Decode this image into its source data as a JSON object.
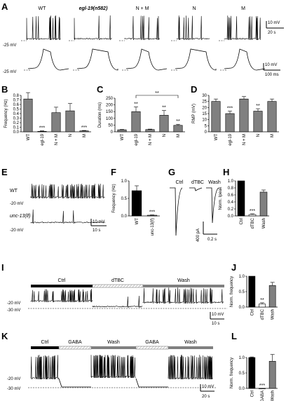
{
  "panels": {
    "A": {
      "letter": "A",
      "conditions": [
        "WT",
        "egl-19(n582)",
        "N + M",
        "N",
        "M"
      ],
      "voltage_label": "-25 mV",
      "scalebar_top": {
        "v": "10 mV",
        "t": "20 s"
      },
      "scalebar_bottom": {
        "v": "10 mV",
        "t": "100 ms"
      }
    },
    "B": {
      "letter": "B"
    },
    "C": {
      "letter": "C"
    },
    "D": {
      "letter": "D"
    },
    "E": {
      "letter": "E",
      "trace_labels": [
        "WT",
        "unc-13(lf)"
      ],
      "voltage_label": "-20 mV",
      "scalebar": {
        "v": "10 mV",
        "t": "10 s"
      }
    },
    "F": {
      "letter": "F"
    },
    "G": {
      "letter": "G",
      "conditions": [
        "Ctrl",
        "dTBC",
        "Wash"
      ],
      "scalebar": {
        "i": "400 pA",
        "t": "0.2 s"
      }
    },
    "H": {
      "letter": "H"
    },
    "I": {
      "letter": "I",
      "bars": [
        "Ctrl",
        "dTBC",
        "Wash"
      ],
      "voltages": [
        "-20 mV",
        "-30 mV"
      ],
      "scalebar": {
        "v": "10 mV",
        "t": "10 s"
      }
    },
    "J": {
      "letter": "J"
    },
    "K": {
      "letter": "K",
      "bars": [
        "Ctrl",
        "GABA",
        "Wash",
        "GABA",
        "Wash"
      ],
      "voltages": [
        "-20 mV",
        "-30 mV"
      ],
      "scalebar": {
        "v": "10 mV",
        "t": "20 s"
      }
    },
    "L": {
      "letter": "L"
    }
  },
  "chart_data": [
    {
      "id": "B",
      "type": "bar",
      "categories": [
        "WT",
        "egl-19",
        "N + M",
        "N",
        "M"
      ],
      "values": [
        0.72,
        0.01,
        0.42,
        0.46,
        0.02
      ],
      "errors": [
        0.14,
        0.01,
        0.12,
        0.16,
        0.01
      ],
      "colors": [
        "#808080",
        "#808080",
        "#808080",
        "#808080",
        "#808080"
      ],
      "ylabel": "Frequency (Hz)",
      "ylim": [
        0,
        0.8
      ],
      "yticks": [
        "0.0",
        "0.1",
        "0.2",
        "0.3",
        "0.4",
        "0.5",
        "0.6",
        "0.7",
        "0.8"
      ],
      "significance": [
        "",
        "***",
        "",
        "",
        "***"
      ]
    },
    {
      "id": "C",
      "type": "bar",
      "categories": [
        "WT",
        "egl-19",
        "N + M",
        "N",
        "M"
      ],
      "values": [
        15,
        150,
        17,
        123,
        48
      ],
      "errors": [
        3,
        35,
        3,
        35,
        8
      ],
      "colors": [
        "#808080",
        "#808080",
        "#808080",
        "#808080",
        "#808080"
      ],
      "ylabel": "Duration (ms)",
      "ylim": [
        0,
        250
      ],
      "yticks": [
        "0",
        "50",
        "100",
        "150",
        "200",
        "250"
      ],
      "significance": [
        "",
        "**",
        "",
        "**",
        "**"
      ],
      "bracket": {
        "from": 1,
        "to": 4,
        "label": "**"
      }
    },
    {
      "id": "D",
      "type": "bar",
      "categories": [
        "WT",
        "egl-19",
        "N + M",
        "N",
        "M"
      ],
      "values": [
        25,
        15,
        27,
        17,
        25
      ],
      "errors": [
        2,
        2,
        2,
        2,
        2
      ],
      "colors": [
        "#808080",
        "#808080",
        "#808080",
        "#808080",
        "#808080"
      ],
      "ylabel": "RMP (mV)",
      "ylim": [
        0,
        30
      ],
      "yticks": [
        "0",
        "5",
        "10",
        "15",
        "20",
        "25",
        "30"
      ],
      "significance": [
        "",
        "***",
        "",
        "**",
        ""
      ]
    },
    {
      "id": "F",
      "type": "bar",
      "categories": [
        "WT",
        "unc-13(lf)"
      ],
      "values": [
        0.72,
        0.02
      ],
      "errors": [
        0.14,
        0.01
      ],
      "colors": [
        "#000000",
        "#808080"
      ],
      "ylabel": "Frequency (Hz)",
      "ylim": [
        0,
        1.0
      ],
      "yticks": [
        "0.0",
        "0.5",
        "1.0"
      ],
      "significance": [
        "",
        "***"
      ]
    },
    {
      "id": "H",
      "type": "bar",
      "categories": [
        "Ctrl",
        "dTBC",
        "Wash"
      ],
      "values": [
        1.0,
        0.04,
        0.68
      ],
      "errors": [
        0,
        0.02,
        0.06
      ],
      "colors": [
        "#000000",
        "#ffffff",
        "#808080"
      ],
      "ylabel": "Norm. Ipeak",
      "ylim": [
        0,
        1.0
      ],
      "yticks": [
        "0.0",
        "0.2",
        "0.4",
        "0.6",
        "0.8",
        "1.0"
      ],
      "significance": [
        "",
        "***",
        ""
      ]
    },
    {
      "id": "J",
      "type": "bar",
      "categories": [
        "Ctrl",
        "dTBC",
        "Wash"
      ],
      "values": [
        1.0,
        0.1,
        0.7
      ],
      "errors": [
        0,
        0.04,
        0.1
      ],
      "colors": [
        "#000000",
        "#ffffff",
        "#808080"
      ],
      "ylabel": "Norm. frequency",
      "ylim": [
        0,
        1.0
      ],
      "yticks": [
        "0.0",
        "0.5",
        "1.0"
      ],
      "significance": [
        "",
        "**",
        ""
      ]
    },
    {
      "id": "L",
      "type": "bar",
      "categories": [
        "Ctrl",
        "GABA",
        "Wash"
      ],
      "values": [
        1.0,
        0.0,
        0.88
      ],
      "errors": [
        0.02,
        0,
        0.22
      ],
      "colors": [
        "#000000",
        "#ffffff",
        "#808080"
      ],
      "ylabel": "Norm. frequency",
      "ylim": [
        0,
        1.0
      ],
      "yticks": [
        "0.0",
        "0.5",
        "1.0"
      ],
      "significance": [
        "",
        "***",
        ""
      ]
    }
  ]
}
